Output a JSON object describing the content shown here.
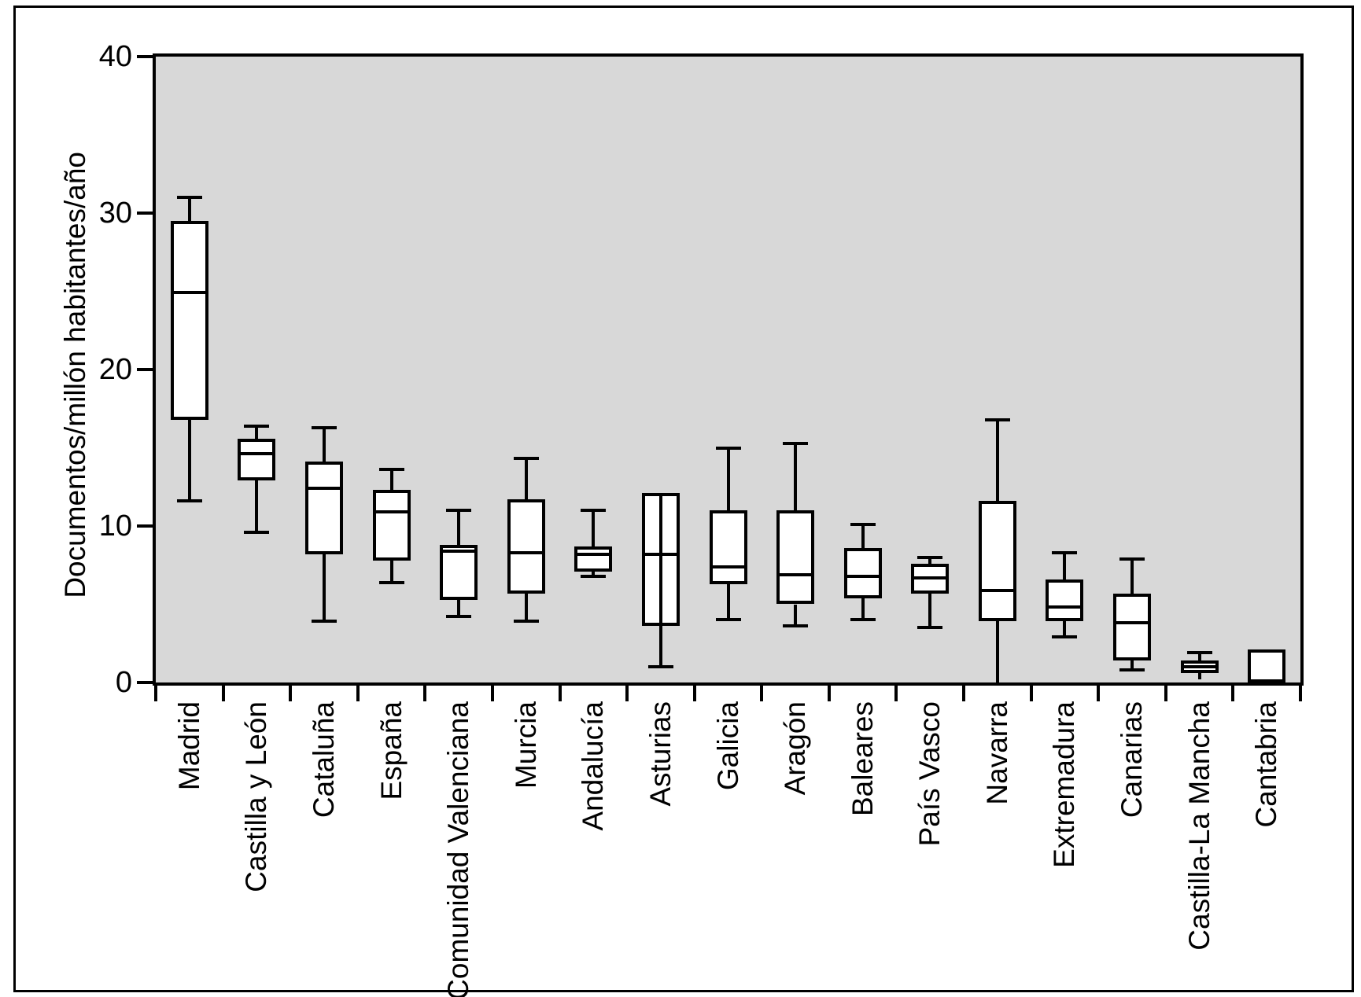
{
  "figure": {
    "colors": {
      "figure_background": "#ffffff",
      "figure_border": "#000000",
      "plot_background": "#d8d8d8",
      "box_fill": "#ffffff",
      "line_color": "#000000"
    }
  },
  "chart_data": {
    "type": "boxplot",
    "title": "",
    "xlabel": "",
    "ylabel": "Documentos/millón habitantes/año",
    "ylim": [
      0,
      40
    ],
    "yticks": [
      0,
      10,
      20,
      30,
      40
    ],
    "grid": false,
    "legend": false,
    "categories": [
      "Madrid",
      "Castilla y León",
      "Cataluña",
      "España",
      "Comunidad Valenciana",
      "Murcia",
      "Andalucía",
      "Asturias",
      "Galicia",
      "Aragón",
      "Baleares",
      "País Vasco",
      "Navarra",
      "Extremadura",
      "Canarias",
      "Castilla-La Mancha",
      "Cantabria"
    ],
    "boxes": [
      {
        "label": "Madrid",
        "low": 11.6,
        "q1": 16.8,
        "median": 24.9,
        "q3": 29.5,
        "high": 31.0,
        "cap_low": true,
        "cap_high": true,
        "line_through_box": false
      },
      {
        "label": "Castilla y León",
        "low": 9.6,
        "q1": 12.9,
        "median": 14.6,
        "q3": 15.6,
        "high": 16.4,
        "cap_low": true,
        "cap_high": true,
        "line_through_box": false
      },
      {
        "label": "Cataluña",
        "low": 3.9,
        "q1": 8.2,
        "median": 12.4,
        "q3": 14.1,
        "high": 16.3,
        "cap_low": true,
        "cap_high": true,
        "line_through_box": false
      },
      {
        "label": "España",
        "low": 6.4,
        "q1": 7.8,
        "median": 10.9,
        "q3": 12.3,
        "high": 13.6,
        "cap_low": true,
        "cap_high": true,
        "line_through_box": false
      },
      {
        "label": "Comunidad Valenciana",
        "low": 4.2,
        "q1": 5.3,
        "median": 8.4,
        "q3": 8.8,
        "high": 11.0,
        "cap_low": true,
        "cap_high": true,
        "line_through_box": false
      },
      {
        "label": "Murcia",
        "low": 3.9,
        "q1": 5.7,
        "median": 8.3,
        "q3": 11.7,
        "high": 14.3,
        "cap_low": true,
        "cap_high": true,
        "line_through_box": false
      },
      {
        "label": "Andalucía",
        "low": 6.8,
        "q1": 7.1,
        "median": 8.2,
        "q3": 8.7,
        "high": 11.0,
        "cap_low": true,
        "cap_high": true,
        "line_through_box": false
      },
      {
        "label": "Asturias",
        "low": 1.0,
        "q1": 3.6,
        "median": 8.2,
        "q3": 12.1,
        "high": 12.1,
        "cap_low": true,
        "cap_high": false,
        "line_through_box": true
      },
      {
        "label": "Galicia",
        "low": 4.0,
        "q1": 6.3,
        "median": 7.4,
        "q3": 11.0,
        "high": 15.0,
        "cap_low": true,
        "cap_high": true,
        "line_through_box": false
      },
      {
        "label": "Aragón",
        "low": 3.6,
        "q1": 5.0,
        "median": 6.9,
        "q3": 11.0,
        "high": 15.3,
        "cap_low": true,
        "cap_high": true,
        "line_through_box": false
      },
      {
        "label": "Baleares",
        "low": 4.0,
        "q1": 5.4,
        "median": 6.8,
        "q3": 8.6,
        "high": 10.1,
        "cap_low": true,
        "cap_high": true,
        "line_through_box": false
      },
      {
        "label": "País Vasco",
        "low": 3.5,
        "q1": 5.7,
        "median": 6.7,
        "q3": 7.6,
        "high": 8.0,
        "cap_low": true,
        "cap_high": true,
        "line_through_box": false
      },
      {
        "label": "Navarra",
        "low": 0.0,
        "q1": 3.9,
        "median": 5.9,
        "q3": 11.6,
        "high": 16.8,
        "cap_low": false,
        "cap_high": true,
        "line_through_box": false
      },
      {
        "label": "Extremadura",
        "low": 2.9,
        "q1": 3.9,
        "median": 4.8,
        "q3": 6.6,
        "high": 8.3,
        "cap_low": true,
        "cap_high": true,
        "line_through_box": false
      },
      {
        "label": "Canarias",
        "low": 0.8,
        "q1": 1.4,
        "median": 3.8,
        "q3": 5.7,
        "high": 7.9,
        "cap_low": true,
        "cap_high": true,
        "line_through_box": false
      },
      {
        "label": "Castilla-La Mancha",
        "low": 0.2,
        "q1": 0.6,
        "median": 1.0,
        "q3": 1.4,
        "high": 1.9,
        "cap_low": false,
        "cap_high": true,
        "line_through_box": false
      },
      {
        "label": "Cantabria",
        "low": null,
        "q1": 0.0,
        "median": null,
        "q3": 2.1,
        "high": null,
        "cap_low": false,
        "cap_high": false,
        "line_through_box": false
      }
    ]
  }
}
